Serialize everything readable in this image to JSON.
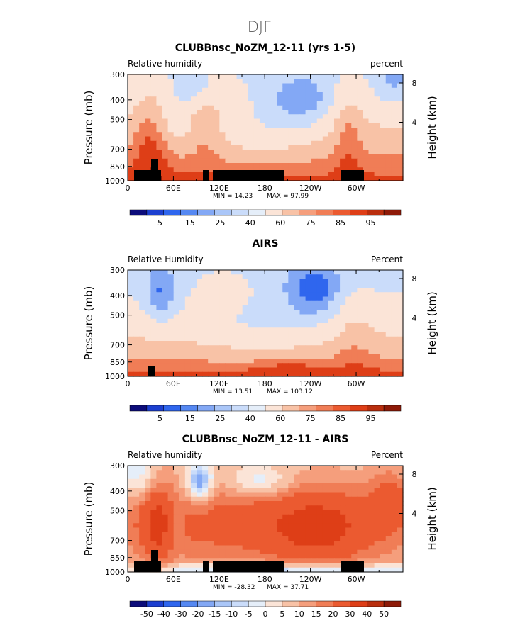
{
  "figure_title": "DJF",
  "chart_data": [
    {
      "type": "heatmap",
      "title": "CLUBBnsc_NoZM_12-11 (yrs 1-5)",
      "left_label": "Relative humidity",
      "right_label": "percent",
      "ylabel": "Pressure (mb)",
      "ylabel_right": "Height (km)",
      "x_ticks": [
        "0",
        "60E",
        "120E",
        "180",
        "120W",
        "60W"
      ],
      "y_ticks": [
        "300",
        "400",
        "500",
        "700",
        "850",
        "1000"
      ],
      "y_right_ticks": [
        "8",
        "4"
      ],
      "min_label": "MIN =  14.23",
      "max_label": "MAX =  97.99",
      "levels": [
        "5",
        "15",
        "25",
        "40",
        "60",
        "75",
        "85",
        "95"
      ],
      "colorbar_colors": [
        "#0c0c7a",
        "#1c3fd0",
        "#2f66ee",
        "#5588f2",
        "#83a8f5",
        "#aac6f8",
        "#cadcfa",
        "#e5eef9",
        "#fbe4d7",
        "#f8c2a6",
        "#f59e7c",
        "#f07d56",
        "#eb5a30",
        "#de3e17",
        "#b92e0e",
        "#8e1a08"
      ],
      "land_columns": [
        0.03,
        0.12,
        0.28,
        0.31,
        0.57,
        0.86,
        0.89
      ],
      "field": "rh_model"
    },
    {
      "type": "heatmap",
      "title": "AIRS",
      "left_label": "Relative Humidity",
      "right_label": "Percent",
      "ylabel": "Pressure (mb)",
      "ylabel_right": "Height (km)",
      "x_ticks": [
        "0",
        "60E",
        "120E",
        "180",
        "120W",
        "60W"
      ],
      "y_ticks": [
        "300",
        "400",
        "500",
        "700",
        "850",
        "1000"
      ],
      "y_right_ticks": [
        "8",
        "4"
      ],
      "min_label": "MIN =  13.51",
      "max_label": "MAX = 103.12",
      "levels": [
        "5",
        "15",
        "25",
        "40",
        "60",
        "75",
        "85",
        "95"
      ],
      "colorbar_colors": [
        "#0c0c7a",
        "#1c3fd0",
        "#2f66ee",
        "#5588f2",
        "#83a8f5",
        "#aac6f8",
        "#cadcfa",
        "#e5eef9",
        "#fbe4d7",
        "#f8c2a6",
        "#f59e7c",
        "#f07d56",
        "#eb5a30",
        "#de3e17",
        "#b92e0e",
        "#8e1a08"
      ],
      "land_columns": [
        0.08
      ],
      "field": "rh_obs"
    },
    {
      "type": "heatmap",
      "title": "CLUBBnsc_NoZM_12-11 - AIRS",
      "left_label": "Relative humidity",
      "right_label": "Percent",
      "ylabel": "Pressure (mb)",
      "ylabel_right": "Height (km)",
      "x_ticks": [
        "0",
        "60E",
        "120E",
        "180",
        "120W",
        "60W"
      ],
      "y_ticks": [
        "300",
        "400",
        "500",
        "700",
        "850",
        "1000"
      ],
      "y_right_ticks": [
        "8",
        "4"
      ],
      "min_label": "MIN = -28.32",
      "max_label": "MAX =  37.71",
      "levels": [
        "-50",
        "-40",
        "-30",
        "-20",
        "-15",
        "-10",
        "-5",
        "0",
        "5",
        "10",
        "15",
        "20",
        "30",
        "40",
        "50"
      ],
      "colorbar_colors": [
        "#0c0c7a",
        "#1c3fd0",
        "#2f66ee",
        "#5588f2",
        "#83a8f5",
        "#aac6f8",
        "#cadcfa",
        "#e5eef9",
        "#fbe4d7",
        "#f8c2a6",
        "#f59e7c",
        "#f07d56",
        "#eb5a30",
        "#de3e17",
        "#b92e0e",
        "#8e1a08"
      ],
      "land_columns": [
        0.03,
        0.12,
        0.28,
        0.31,
        0.57,
        0.86,
        0.89
      ],
      "field": "rh_diff"
    }
  ]
}
